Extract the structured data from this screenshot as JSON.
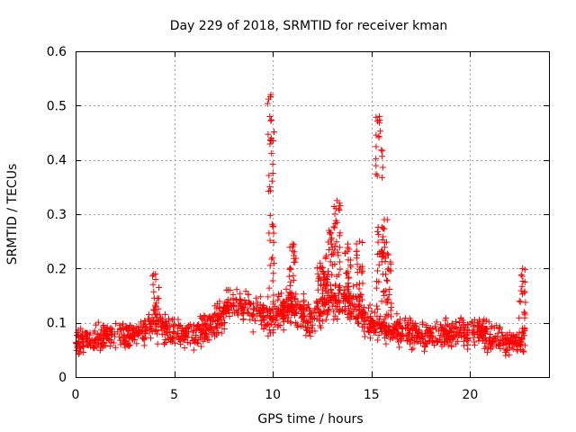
{
  "chart_data": {
    "type": "scatter",
    "title": "Day 229 of 2018, SRMTID for receiver kman",
    "xlabel": "GPS time / hours",
    "ylabel": "SRMTID / TECUs",
    "xlim": [
      0,
      24
    ],
    "ylim": [
      0,
      0.6
    ],
    "x_ticks": [
      0,
      5,
      10,
      15,
      20
    ],
    "x_tick_labels": [
      "0",
      "5",
      "10",
      "15",
      "20"
    ],
    "y_ticks": [
      0,
      0.1,
      0.2,
      0.3,
      0.4,
      0.5,
      0.6
    ],
    "y_tick_labels": [
      "0",
      "0.1",
      "0.2",
      "0.3",
      "0.4",
      "0.5",
      "0.6"
    ],
    "grid": true,
    "marker": "+",
    "color": "#ff0000",
    "series": [
      {
        "name": "SRMTID",
        "x_range": [
          0.0,
          22.8
        ],
        "baseline_profile": [
          {
            "x": 0.0,
            "y": 0.065
          },
          {
            "x": 1.0,
            "y": 0.07
          },
          {
            "x": 2.0,
            "y": 0.075
          },
          {
            "x": 3.0,
            "y": 0.08
          },
          {
            "x": 4.0,
            "y": 0.095
          },
          {
            "x": 5.0,
            "y": 0.085
          },
          {
            "x": 6.0,
            "y": 0.075
          },
          {
            "x": 7.0,
            "y": 0.1
          },
          {
            "x": 8.0,
            "y": 0.14
          },
          {
            "x": 9.0,
            "y": 0.12
          },
          {
            "x": 10.0,
            "y": 0.11
          },
          {
            "x": 11.0,
            "y": 0.13
          },
          {
            "x": 12.0,
            "y": 0.1
          },
          {
            "x": 13.0,
            "y": 0.14
          },
          {
            "x": 14.0,
            "y": 0.13
          },
          {
            "x": 15.0,
            "y": 0.095
          },
          {
            "x": 16.0,
            "y": 0.085
          },
          {
            "x": 17.0,
            "y": 0.08
          },
          {
            "x": 18.0,
            "y": 0.075
          },
          {
            "x": 19.0,
            "y": 0.08
          },
          {
            "x": 20.0,
            "y": 0.085
          },
          {
            "x": 21.0,
            "y": 0.075
          },
          {
            "x": 22.0,
            "y": 0.06
          },
          {
            "x": 22.8,
            "y": 0.07
          }
        ],
        "peaks": [
          {
            "x": 4.05,
            "y": 0.19
          },
          {
            "x": 9.9,
            "y": 0.52
          },
          {
            "x": 11.0,
            "y": 0.245
          },
          {
            "x": 12.4,
            "y": 0.21
          },
          {
            "x": 12.6,
            "y": 0.19
          },
          {
            "x": 12.85,
            "y": 0.27
          },
          {
            "x": 13.25,
            "y": 0.325
          },
          {
            "x": 13.8,
            "y": 0.245
          },
          {
            "x": 14.4,
            "y": 0.25
          },
          {
            "x": 15.4,
            "y": 0.48
          },
          {
            "x": 15.65,
            "y": 0.29
          },
          {
            "x": 15.85,
            "y": 0.225
          },
          {
            "x": 22.65,
            "y": 0.2
          }
        ]
      }
    ]
  }
}
